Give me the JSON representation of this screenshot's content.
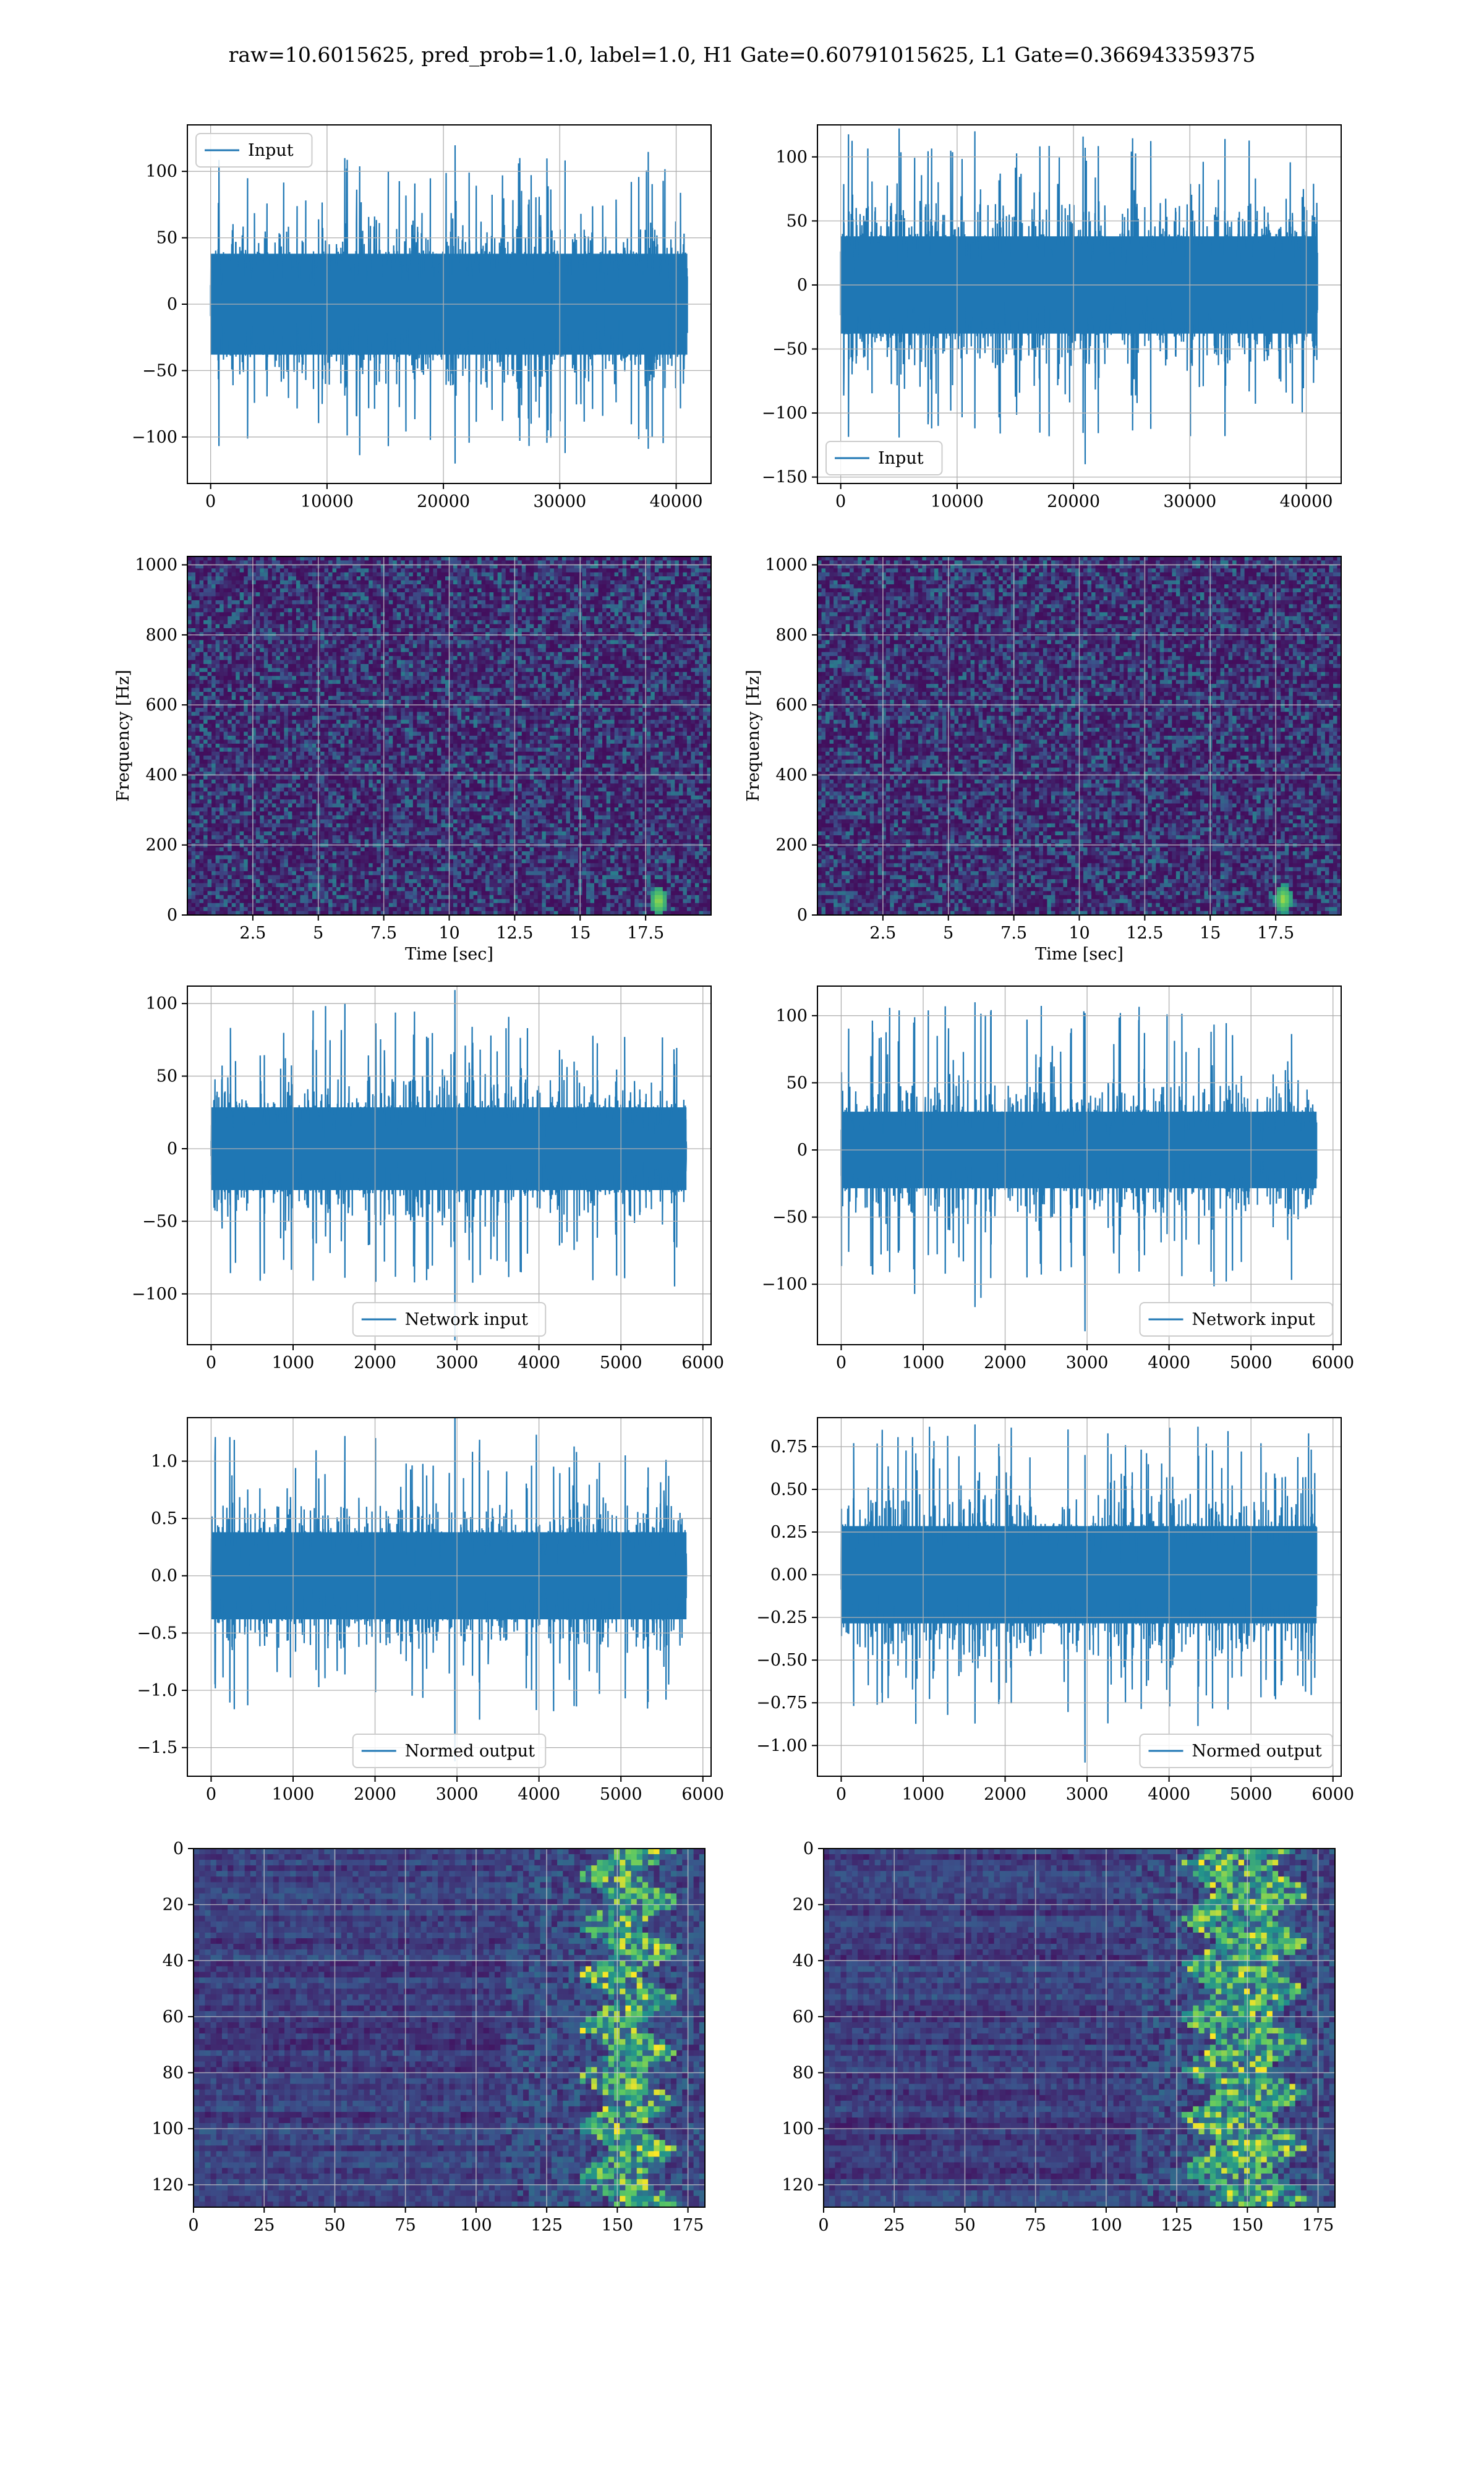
{
  "figure": {
    "title": "raw=10.6015625, pred_prob=1.0, label=1.0, H1 Gate=0.60791015625, L1 Gate=0.366943359375"
  },
  "colors": {
    "line": "#1f77b4",
    "grid": "#b0b0b0",
    "viridis_dark": "#440154",
    "viridis_mid": "#21918c",
    "viridis_bright": "#fde725"
  },
  "chart_data": [
    {
      "type": "line",
      "name": "raw-input-h1",
      "xlim": [
        -2000,
        43000
      ],
      "ylim": [
        -135,
        135
      ],
      "xticks": [
        0,
        10000,
        20000,
        30000,
        40000
      ],
      "yticks": [
        -100,
        -50,
        0,
        50,
        100
      ],
      "xlabel": "",
      "ylabel": "",
      "grid": true,
      "legend": "upper left",
      "series": [
        {
          "name": "Input",
          "n_samples": 40960,
          "core_amplitude": 40,
          "peak_min": -120,
          "peak_max": 110
        }
      ]
    },
    {
      "type": "line",
      "name": "raw-input-l1",
      "xlim": [
        -2000,
        43000
      ],
      "ylim": [
        -155,
        125
      ],
      "xticks": [
        0,
        10000,
        20000,
        30000,
        40000
      ],
      "yticks": [
        -150,
        -100,
        -50,
        0,
        50,
        100
      ],
      "xlabel": "",
      "ylabel": "",
      "grid": true,
      "legend": "lower left",
      "series": [
        {
          "name": "Input",
          "n_samples": 40960,
          "core_amplitude": 40,
          "peak_min": -140,
          "peak_max": 120
        }
      ]
    },
    {
      "type": "heatmap",
      "name": "spectrogram-h1",
      "xlim": [
        0,
        20
      ],
      "ylim": [
        0,
        1024
      ],
      "xticks": [
        2.5,
        5.0,
        7.5,
        10.0,
        12.5,
        15.0,
        17.5
      ],
      "yticks": [
        0,
        200,
        400,
        600,
        800,
        1000
      ],
      "xlabel": "Time [sec]",
      "ylabel": "Frequency [Hz]",
      "grid": true,
      "colormap": "viridis",
      "bright_spot": {
        "time": 18.0,
        "freq": 40
      }
    },
    {
      "type": "heatmap",
      "name": "spectrogram-l1",
      "xlim": [
        0,
        20
      ],
      "ylim": [
        0,
        1024
      ],
      "xticks": [
        2.5,
        5.0,
        7.5,
        10.0,
        12.5,
        15.0,
        17.5
      ],
      "yticks": [
        0,
        200,
        400,
        600,
        800,
        1000
      ],
      "xlabel": "Time [sec]",
      "ylabel": "Frequency [Hz]",
      "grid": true,
      "colormap": "viridis",
      "bright_spot": {
        "time": 17.8,
        "freq": 45
      }
    },
    {
      "type": "line",
      "name": "network-input-h1",
      "xlim": [
        -290,
        6100
      ],
      "ylim": [
        -135,
        112
      ],
      "xticks": [
        0,
        1000,
        2000,
        3000,
        4000,
        5000,
        6000
      ],
      "yticks": [
        -100,
        -50,
        0,
        50,
        100
      ],
      "xlabel": "",
      "ylabel": "",
      "grid": true,
      "legend": "lower center",
      "series": [
        {
          "name": "Network input",
          "n_samples": 5800,
          "core_amplitude": 30,
          "peak_min": -132,
          "peak_max": 100
        }
      ]
    },
    {
      "type": "line",
      "name": "network-input-l1",
      "xlim": [
        -290,
        6100
      ],
      "ylim": [
        -145,
        122
      ],
      "xticks": [
        0,
        1000,
        2000,
        3000,
        4000,
        5000,
        6000
      ],
      "yticks": [
        -100,
        -50,
        0,
        50,
        100
      ],
      "xlabel": "",
      "ylabel": "",
      "grid": true,
      "legend": "lower right",
      "series": [
        {
          "name": "Network input",
          "n_samples": 5800,
          "core_amplitude": 30,
          "peak_min": -135,
          "peak_max": 110
        }
      ]
    },
    {
      "type": "line",
      "name": "normed-output-h1",
      "xlim": [
        -290,
        6100
      ],
      "ylim": [
        -1.75,
        1.38
      ],
      "xticks": [
        0,
        1000,
        2000,
        3000,
        4000,
        5000,
        6000
      ],
      "yticks": [
        -1.5,
        -1.0,
        -0.5,
        0.0,
        0.5,
        1.0
      ],
      "ytick_labels": [
        "−1.5",
        "−1.0",
        "−0.5",
        "0.0",
        "0.5",
        "1.0"
      ],
      "xlabel": "",
      "ylabel": "",
      "grid": true,
      "legend": "lower center",
      "series": [
        {
          "name": "Normed output",
          "n_samples": 5800,
          "core_amplitude": 0.4,
          "peak_min": -1.62,
          "peak_max": 1.22
        }
      ]
    },
    {
      "type": "line",
      "name": "normed-output-l1",
      "xlim": [
        -290,
        6100
      ],
      "ylim": [
        -1.18,
        0.92
      ],
      "xticks": [
        0,
        1000,
        2000,
        3000,
        4000,
        5000,
        6000
      ],
      "yticks": [
        -1.0,
        -0.75,
        -0.5,
        -0.25,
        0.0,
        0.25,
        0.5,
        0.75
      ],
      "ytick_labels": [
        "−1.00",
        "−0.75",
        "−0.50",
        "−0.25",
        "0.00",
        "0.25",
        "0.50",
        "0.75"
      ],
      "xlabel": "",
      "ylabel": "",
      "grid": true,
      "legend": "lower right",
      "series": [
        {
          "name": "Normed output",
          "n_samples": 5800,
          "core_amplitude": 0.3,
          "peak_min": -1.1,
          "peak_max": 0.88
        }
      ]
    },
    {
      "type": "heatmap",
      "name": "feature-map-h1",
      "xlim": [
        0,
        181
      ],
      "ylim": [
        128,
        0
      ],
      "xticks": [
        0,
        25,
        50,
        75,
        100,
        125,
        150,
        175
      ],
      "yticks": [
        0,
        20,
        40,
        60,
        80,
        100,
        120
      ],
      "xlabel": "",
      "ylabel": "",
      "grid": true,
      "colormap": "viridis",
      "bright_band": {
        "x_start": 150,
        "x_end": 165
      }
    },
    {
      "type": "heatmap",
      "name": "feature-map-l1",
      "xlim": [
        0,
        181
      ],
      "ylim": [
        128,
        0
      ],
      "xticks": [
        0,
        25,
        50,
        75,
        100,
        125,
        150,
        175
      ],
      "yticks": [
        0,
        20,
        40,
        60,
        80,
        100,
        120
      ],
      "xlabel": "",
      "ylabel": "",
      "grid": true,
      "colormap": "viridis",
      "bright_band": {
        "x_start": 140,
        "x_end": 165
      }
    }
  ]
}
